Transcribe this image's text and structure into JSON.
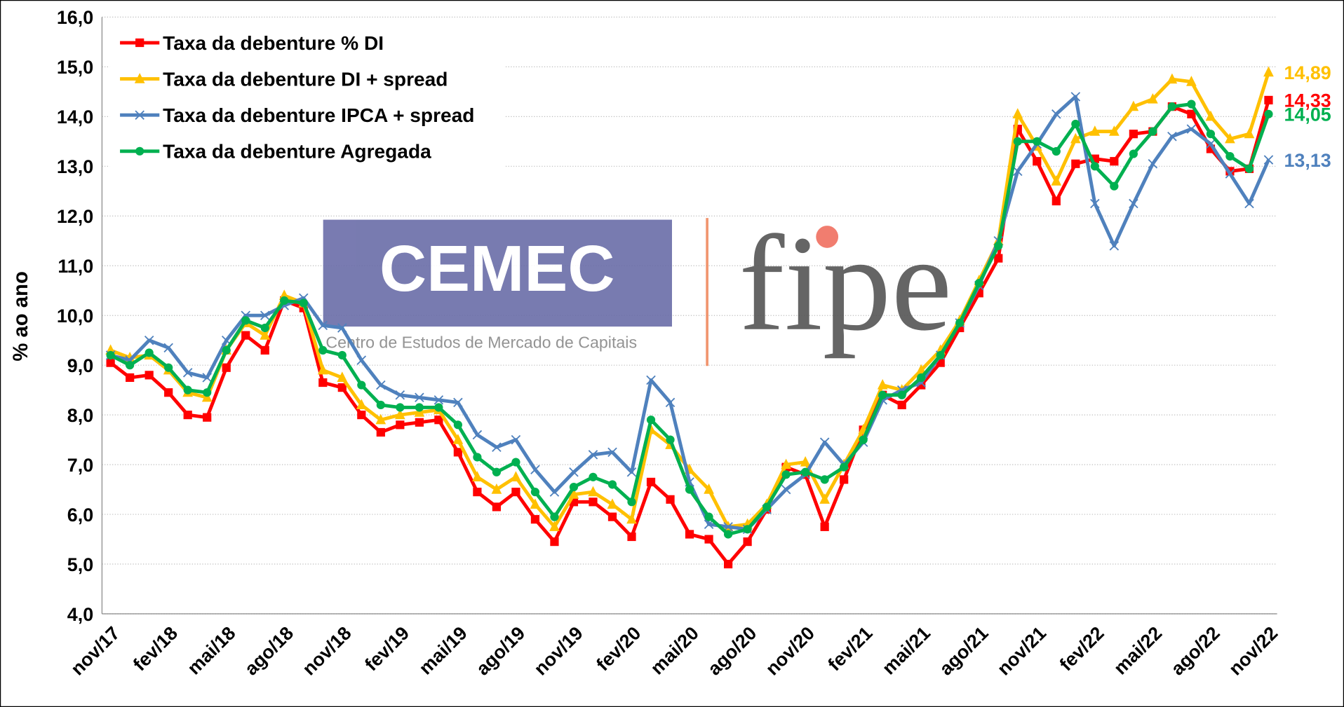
{
  "chart_data": {
    "type": "line",
    "y_label": "% ao ano",
    "categories": [
      "nov/17",
      null,
      null,
      "fev/18",
      null,
      null,
      "mai/18",
      null,
      null,
      "ago/18",
      null,
      null,
      "nov/18",
      null,
      null,
      "fev/19",
      null,
      null,
      "mai/19",
      null,
      null,
      "ago/19",
      null,
      null,
      "nov/19",
      null,
      null,
      "fev/20",
      null,
      null,
      "mai/20",
      null,
      null,
      "ago/20",
      null,
      null,
      "nov/20",
      null,
      null,
      "fev/21",
      null,
      null,
      "mai/21",
      null,
      null,
      "ago/21",
      null,
      null,
      "nov/21",
      null,
      null,
      "fev/22",
      null,
      null,
      "mai/22",
      null,
      null,
      "ago/22",
      null,
      null,
      "nov/22"
    ],
    "ylim": [
      4,
      16
    ],
    "yticks": [
      {
        "value": 4,
        "label": "4,0"
      },
      {
        "value": 5,
        "label": "5,0"
      },
      {
        "value": 6,
        "label": "6,0"
      },
      {
        "value": 7,
        "label": "7,0"
      },
      {
        "value": 8,
        "label": "8,0"
      },
      {
        "value": 9,
        "label": "9,0"
      },
      {
        "value": 10,
        "label": "10,0"
      },
      {
        "value": 11,
        "label": "11,0"
      },
      {
        "value": 12,
        "label": "12,0"
      },
      {
        "value": 13,
        "label": "13,0"
      },
      {
        "value": 14,
        "label": "14,0"
      },
      {
        "value": 15,
        "label": "15,0"
      },
      {
        "value": 16,
        "label": "16,0"
      }
    ],
    "grid": true,
    "legend": "top-left",
    "series": [
      {
        "name": "Taxa da debenture % DI",
        "color": "#ff0000",
        "marker": "square",
        "values": [
          9.05,
          8.75,
          8.8,
          8.45,
          8.0,
          7.95,
          8.95,
          9.6,
          9.3,
          10.3,
          10.15,
          8.65,
          8.55,
          8.0,
          7.65,
          7.8,
          7.85,
          7.9,
          7.25,
          6.45,
          6.15,
          6.45,
          5.9,
          5.45,
          6.25,
          6.25,
          5.95,
          5.55,
          6.65,
          6.3,
          5.6,
          5.5,
          5.0,
          5.45,
          6.1,
          6.95,
          6.8,
          5.75,
          6.7,
          7.7,
          8.4,
          8.2,
          8.6,
          9.05,
          9.75,
          10.45,
          11.15,
          13.75,
          13.1,
          12.3,
          13.05,
          13.15,
          13.1,
          13.65,
          13.7,
          14.2,
          14.05,
          13.35,
          12.9,
          12.95,
          14.33
        ],
        "value_labels": [
          null,
          null,
          null,
          null,
          null,
          null,
          null,
          null,
          null,
          null,
          null,
          null,
          null,
          null,
          null,
          null,
          null,
          null,
          null,
          null,
          null,
          null,
          null,
          null,
          null,
          null,
          null,
          null,
          null,
          null,
          null,
          null,
          null,
          null,
          null,
          null,
          null,
          null,
          null,
          null,
          null,
          null,
          null,
          null,
          null,
          null,
          null,
          null,
          null,
          null,
          null,
          null,
          null,
          null,
          null,
          null,
          null,
          null,
          null,
          null,
          "14,33"
        ]
      },
      {
        "name": "Taxa da debenture DI + spread",
        "color": "#ffc000",
        "marker": "triangle",
        "values": [
          9.3,
          9.15,
          9.2,
          8.9,
          8.45,
          8.35,
          9.3,
          9.85,
          9.6,
          10.4,
          10.25,
          8.9,
          8.75,
          8.2,
          7.9,
          8.0,
          8.05,
          8.1,
          7.5,
          6.75,
          6.5,
          6.75,
          6.2,
          5.75,
          6.4,
          6.45,
          6.2,
          5.9,
          7.7,
          7.4,
          6.9,
          6.5,
          5.75,
          5.8,
          6.2,
          7.0,
          7.05,
          6.3,
          7.0,
          7.7,
          8.6,
          8.5,
          8.9,
          9.3,
          9.9,
          10.7,
          11.5,
          14.05,
          13.4,
          12.7,
          13.55,
          13.7,
          13.7,
          14.2,
          14.35,
          14.75,
          14.7,
          14.0,
          13.55,
          13.65,
          14.89
        ],
        "value_labels": [
          null,
          null,
          null,
          null,
          null,
          null,
          null,
          null,
          null,
          null,
          null,
          null,
          null,
          null,
          null,
          null,
          null,
          null,
          null,
          null,
          null,
          null,
          null,
          null,
          null,
          null,
          null,
          null,
          null,
          null,
          null,
          null,
          null,
          null,
          null,
          null,
          null,
          null,
          null,
          null,
          null,
          null,
          null,
          null,
          null,
          null,
          null,
          null,
          null,
          null,
          null,
          null,
          null,
          null,
          null,
          null,
          null,
          null,
          null,
          null,
          "14,89"
        ]
      },
      {
        "name": "Taxa da debenture IPCA + spread",
        "color": "#4f81bd",
        "marker": "x",
        "values": [
          9.2,
          9.1,
          9.5,
          9.35,
          8.85,
          8.75,
          9.5,
          10.0,
          10.0,
          10.2,
          10.35,
          9.8,
          9.75,
          9.1,
          8.6,
          8.4,
          8.35,
          8.3,
          8.25,
          7.6,
          7.35,
          7.5,
          6.9,
          6.45,
          6.85,
          7.2,
          7.25,
          6.85,
          8.7,
          8.25,
          6.65,
          5.8,
          5.75,
          5.7,
          6.1,
          6.5,
          6.8,
          7.45,
          7.0,
          7.45,
          8.3,
          8.5,
          8.65,
          9.2,
          9.85,
          10.6,
          11.5,
          12.9,
          13.45,
          14.05,
          14.4,
          12.25,
          11.4,
          12.25,
          13.05,
          13.6,
          13.75,
          13.45,
          12.85,
          12.25,
          13.13
        ],
        "value_labels": [
          null,
          null,
          null,
          null,
          null,
          null,
          null,
          null,
          null,
          null,
          null,
          null,
          null,
          null,
          null,
          null,
          null,
          null,
          null,
          null,
          null,
          null,
          null,
          null,
          null,
          null,
          null,
          null,
          null,
          null,
          null,
          null,
          null,
          null,
          null,
          null,
          null,
          null,
          null,
          null,
          null,
          null,
          null,
          null,
          null,
          null,
          null,
          null,
          null,
          null,
          null,
          null,
          null,
          null,
          null,
          null,
          null,
          null,
          null,
          null,
          "13,13"
        ]
      },
      {
        "name": "Taxa da debenture Agregada",
        "color": "#00b050",
        "marker": "circle",
        "values": [
          9.2,
          9.0,
          9.25,
          8.95,
          8.5,
          8.45,
          9.3,
          9.9,
          9.75,
          10.3,
          10.25,
          9.3,
          9.2,
          8.6,
          8.2,
          8.15,
          8.15,
          8.15,
          7.8,
          7.15,
          6.85,
          7.05,
          6.45,
          5.95,
          6.55,
          6.75,
          6.6,
          6.25,
          7.9,
          7.5,
          6.5,
          5.95,
          5.6,
          5.7,
          6.15,
          6.8,
          6.85,
          6.7,
          6.95,
          7.5,
          8.4,
          8.4,
          8.75,
          9.2,
          9.85,
          10.65,
          11.4,
          13.5,
          13.5,
          13.3,
          13.85,
          13.0,
          12.6,
          13.25,
          13.7,
          14.2,
          14.25,
          13.65,
          13.2,
          12.95,
          14.05
        ],
        "value_labels": [
          null,
          null,
          null,
          null,
          null,
          null,
          null,
          null,
          null,
          null,
          null,
          null,
          null,
          null,
          null,
          null,
          null,
          null,
          null,
          null,
          null,
          null,
          null,
          null,
          null,
          null,
          null,
          null,
          null,
          null,
          null,
          null,
          null,
          null,
          null,
          null,
          null,
          null,
          null,
          null,
          null,
          null,
          null,
          null,
          null,
          null,
          null,
          null,
          null,
          null,
          null,
          null,
          null,
          null,
          null,
          null,
          null,
          null,
          null,
          null,
          "14,05"
        ]
      }
    ],
    "watermark": {
      "left": "CEMEC",
      "left_sub": "Centro de Estudos de Mercado de Capitais",
      "right": "fipe"
    }
  }
}
